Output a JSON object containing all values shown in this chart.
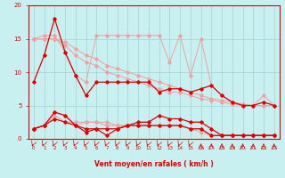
{
  "background_color": "#c8f0f0",
  "grid_color": "#a8d8d8",
  "x": [
    0,
    1,
    2,
    3,
    4,
    5,
    6,
    7,
    8,
    9,
    10,
    11,
    12,
    13,
    14,
    15,
    16,
    17,
    18,
    19,
    20,
    21,
    22,
    23
  ],
  "rafales_jagged": [
    15.0,
    15.5,
    15.5,
    13.0,
    9.5,
    8.5,
    15.5,
    15.5,
    15.5,
    15.5,
    15.5,
    15.5,
    15.5,
    11.5,
    15.5,
    9.5,
    15.0,
    8.0,
    6.5,
    5.5,
    5.0,
    5.0,
    6.5,
    5.0
  ],
  "rafales_dark": [
    8.5,
    12.5,
    18.0,
    13.0,
    9.5,
    6.5,
    8.5,
    8.5,
    8.5,
    8.5,
    8.5,
    8.5,
    7.0,
    7.5,
    7.5,
    7.0,
    7.5,
    8.0,
    6.5,
    5.5,
    5.0,
    5.0,
    5.5,
    5.0
  ],
  "trend1": [
    15.0,
    15.0,
    15.0,
    14.5,
    13.5,
    12.5,
    12.0,
    11.0,
    10.5,
    10.0,
    9.5,
    9.0,
    8.5,
    8.0,
    7.5,
    7.0,
    6.5,
    6.0,
    5.8,
    5.5,
    5.2,
    5.0,
    5.0,
    5.0
  ],
  "trend2": [
    15.0,
    15.0,
    15.0,
    14.0,
    12.5,
    11.5,
    11.0,
    10.0,
    9.5,
    9.0,
    8.5,
    8.0,
    7.5,
    7.0,
    7.0,
    6.5,
    6.0,
    5.8,
    5.5,
    5.2,
    5.0,
    5.0,
    5.0,
    5.0
  ],
  "lower_jagged_light": [
    1.5,
    2.0,
    4.0,
    3.5,
    2.0,
    2.5,
    2.5,
    2.5,
    2.0,
    2.0,
    2.0,
    2.0,
    2.0,
    2.0,
    2.0,
    1.5,
    1.5,
    0.5,
    0.5,
    0.5,
    0.5,
    0.5,
    0.5,
    0.5
  ],
  "lower_flat_light": [
    1.5,
    2.0,
    3.5,
    2.5,
    2.5,
    2.5,
    2.5,
    2.0,
    2.0,
    2.0,
    2.0,
    2.0,
    2.0,
    2.0,
    2.0,
    1.5,
    1.0,
    0.5,
    0.5,
    0.5,
    0.5,
    0.5,
    0.5,
    0.5
  ],
  "lower_jagged_dark": [
    1.5,
    2.0,
    4.0,
    3.5,
    2.0,
    1.0,
    1.5,
    0.5,
    1.5,
    2.0,
    2.5,
    2.5,
    3.5,
    3.0,
    3.0,
    2.5,
    2.5,
    1.5,
    0.5,
    0.5,
    0.5,
    0.5,
    0.5,
    0.5
  ],
  "lower_flat_dark": [
    1.5,
    2.0,
    3.0,
    2.5,
    2.0,
    1.5,
    1.5,
    1.5,
    1.5,
    2.0,
    2.0,
    2.0,
    2.0,
    2.0,
    2.0,
    1.5,
    1.5,
    0.5,
    0.5,
    0.5,
    0.5,
    0.5,
    0.5,
    0.5
  ],
  "xlim": [
    -0.5,
    23.5
  ],
  "ylim": [
    0,
    20
  ],
  "yticks": [
    0,
    5,
    10,
    15,
    20
  ],
  "xlabel": "Vent moyen/en rafales ( km/h )",
  "light_color": "#f0a0a0",
  "dark_color": "#dd0000",
  "marker": "D",
  "marker_size": 1.8,
  "lw_light": 0.7,
  "lw_dark": 0.9
}
